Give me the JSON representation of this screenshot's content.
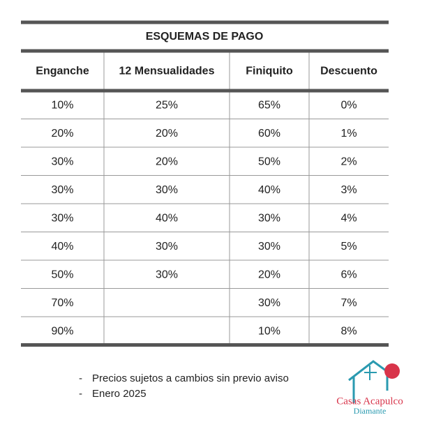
{
  "table": {
    "title": "ESQUEMAS DE PAGO",
    "headers": [
      "Enganche",
      "12 Mensualidades",
      "Finiquito",
      "Descuento"
    ],
    "rows": [
      [
        "10%",
        "25%",
        "65%",
        "0%"
      ],
      [
        "20%",
        "20%",
        "60%",
        "1%"
      ],
      [
        "30%",
        "20%",
        "50%",
        "2%"
      ],
      [
        "30%",
        "30%",
        "40%",
        "3%"
      ],
      [
        "30%",
        "40%",
        "30%",
        "4%"
      ],
      [
        "40%",
        "30%",
        "30%",
        "5%"
      ],
      [
        "50%",
        "30%",
        "20%",
        "6%"
      ],
      [
        "70%",
        null,
        "30%",
        "7%"
      ],
      [
        "90%",
        null,
        "10%",
        "8%"
      ]
    ]
  },
  "notes": [
    "Precios sujetos a cambios sin previo aviso",
    "Enero 2025"
  ],
  "logo": {
    "name": "Casas Acapulco",
    "subname": "Diamante"
  }
}
